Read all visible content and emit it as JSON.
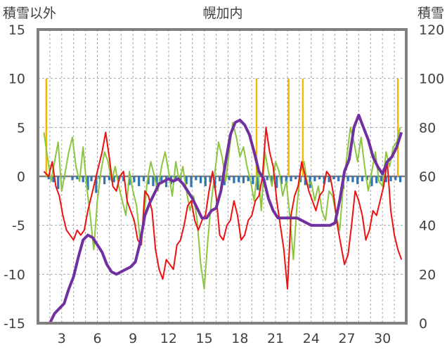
{
  "chart_data": {
    "type": "line",
    "title": "幌加内",
    "left_axis_label": "積雪以外",
    "right_axis_label": "積雪",
    "left_ylim": [
      -15,
      15
    ],
    "left_ticks": [
      15,
      10,
      5,
      0,
      -5,
      -10,
      -15
    ],
    "right_ylim": [
      0,
      120
    ],
    "right_ticks": [
      120,
      100,
      80,
      60,
      40,
      20,
      0
    ],
    "x_range": [
      1,
      32
    ],
    "x_ticks": [
      3,
      6,
      9,
      12,
      15,
      18,
      21,
      24,
      27,
      30
    ],
    "colors": {
      "red": "#ee1111",
      "green": "#8cc63f",
      "purple": "#7030a0",
      "blue": "#2e75b6",
      "orange": "#f5b800",
      "frame": "#808080",
      "grid": "#a6a6a6",
      "zero_line": "#808080"
    },
    "series": [
      {
        "name": "red",
        "axis": "left",
        "style": "line",
        "x": [
          1.5,
          1.9,
          2.2,
          2.5,
          2.8,
          3.1,
          3.4,
          3.7,
          4.0,
          4.3,
          4.6,
          4.9,
          5.2,
          5.5,
          5.8,
          6.1,
          6.4,
          6.7,
          7.0,
          7.3,
          7.6,
          7.9,
          8.2,
          8.5,
          8.8,
          9.1,
          9.4,
          9.7,
          10.0,
          10.3,
          10.6,
          10.9,
          11.2,
          11.5,
          11.8,
          12.1,
          12.4,
          12.7,
          13.0,
          13.3,
          13.6,
          13.9,
          14.2,
          14.5,
          14.8,
          15.1,
          15.4,
          15.7,
          16.0,
          16.3,
          16.6,
          16.9,
          17.2,
          17.5,
          17.8,
          18.1,
          18.4,
          18.7,
          19.0,
          19.3,
          19.6,
          19.9,
          20.2,
          20.5,
          20.8,
          21.1,
          21.4,
          21.7,
          22.0,
          22.3,
          22.6,
          22.9,
          23.2,
          23.5,
          23.8,
          24.1,
          24.4,
          24.7,
          25.0,
          25.3,
          25.6,
          25.9,
          26.2,
          26.5,
          26.8,
          27.1,
          27.4,
          27.7,
          28.0,
          28.3,
          28.6,
          28.9,
          29.2,
          29.5,
          29.8,
          30.1,
          30.4,
          30.7,
          31.0,
          31.3,
          31.6
        ],
        "values": [
          0.5,
          0.0,
          1.5,
          -1.0,
          -2.0,
          -4.0,
          -5.5,
          -6.0,
          -6.5,
          -5.5,
          -6.0,
          -5.5,
          -3.5,
          -2.0,
          -0.5,
          1.0,
          2.5,
          4.5,
          2.0,
          -1.0,
          -1.5,
          0.0,
          0.5,
          -2.5,
          -3.5,
          -4.5,
          -6.5,
          -7.0,
          -1.5,
          -2.0,
          -3.5,
          -7.5,
          -9.5,
          -10.5,
          -8.5,
          -9.0,
          -9.5,
          -7.0,
          -6.5,
          -5.0,
          -3.0,
          -2.5,
          -4.5,
          -5.5,
          -4.5,
          -4.0,
          -1.5,
          0.5,
          -2.0,
          -6.0,
          -6.5,
          -5.0,
          -4.5,
          -2.5,
          -4.0,
          -6.5,
          -6.0,
          -4.5,
          -4.0,
          -2.5,
          -2.0,
          0.0,
          5.0,
          2.5,
          1.0,
          -2.5,
          -5.0,
          -7.5,
          -11.5,
          -4.0,
          -2.0,
          -1.0,
          1.5,
          0.0,
          -1.5,
          -2.5,
          -3.5,
          -2.0,
          -1.5,
          0.5,
          0.0,
          -2.0,
          -5.0,
          -7.0,
          -9.0,
          -8.0,
          -5.0,
          -1.5,
          -2.5,
          -4.0,
          -6.5,
          -5.5,
          -3.5,
          -4.0,
          -2.5,
          -1.0,
          1.5,
          -3.5,
          -6.0,
          -7.5,
          -8.5
        ]
      },
      {
        "name": "green",
        "axis": "left",
        "style": "line",
        "x": [
          1.5,
          1.8,
          2.1,
          2.4,
          2.7,
          3.0,
          3.3,
          3.6,
          3.9,
          4.2,
          4.5,
          4.8,
          5.1,
          5.4,
          5.7,
          6.0,
          6.3,
          6.6,
          6.9,
          7.2,
          7.5,
          7.8,
          8.1,
          8.4,
          8.7,
          9.0,
          9.3,
          9.6,
          9.9,
          10.2,
          10.5,
          10.8,
          11.1,
          11.4,
          11.7,
          12.0,
          12.3,
          12.6,
          12.9,
          13.2,
          13.5,
          13.8,
          14.1,
          14.4,
          14.7,
          15.0,
          15.3,
          15.6,
          15.9,
          16.2,
          16.5,
          16.8,
          17.1,
          17.4,
          17.7,
          18.0,
          18.3,
          18.6,
          18.9,
          19.2,
          19.5,
          19.8,
          20.1,
          20.4,
          20.7,
          21.0,
          21.3,
          21.6,
          21.9,
          22.2,
          22.5,
          22.8,
          23.1,
          23.4,
          23.7,
          24.0,
          24.3,
          24.6,
          24.9,
          25.2,
          25.5,
          25.8,
          26.1,
          26.4,
          26.7,
          27.0,
          27.3,
          27.6,
          27.9,
          28.2,
          28.5,
          28.8,
          29.1,
          29.4,
          29.7,
          30.0,
          30.3,
          30.6,
          30.9,
          31.2,
          31.5
        ],
        "values": [
          4.5,
          2.0,
          -0.5,
          1.5,
          3.5,
          -1.5,
          0.5,
          2.5,
          4.0,
          1.0,
          -0.5,
          3.0,
          -1.0,
          -4.0,
          -7.5,
          -2.5,
          0.5,
          2.5,
          1.5,
          -0.5,
          1.0,
          -1.0,
          -2.5,
          -4.0,
          0.5,
          -1.5,
          -3.0,
          -6.5,
          -4.5,
          -0.5,
          1.5,
          0.0,
          -1.5,
          1.0,
          2.5,
          0.5,
          -2.0,
          1.5,
          -0.5,
          1.0,
          -1.5,
          -3.5,
          -2.0,
          -4.5,
          -9.0,
          -11.5,
          -6.5,
          -2.5,
          0.5,
          3.5,
          2.0,
          -0.5,
          2.5,
          5.5,
          4.0,
          2.0,
          3.0,
          1.0,
          -0.5,
          -2.5,
          1.0,
          -3.5,
          2.5,
          0.5,
          -1.0,
          1.5,
          0.5,
          -2.0,
          -0.5,
          -4.0,
          -8.5,
          -3.0,
          0.5,
          1.5,
          -1.0,
          -0.5,
          -2.5,
          -1.0,
          -3.5,
          -4.5,
          -1.5,
          -2.0,
          -4.0,
          -5.5,
          -1.0,
          2.0,
          5.0,
          3.5,
          1.5,
          4.0,
          1.0,
          -1.5,
          0.5,
          2.5,
          -0.5,
          -1.0,
          2.5,
          1.0,
          3.0,
          3.5,
          5.0
        ]
      },
      {
        "name": "purple",
        "axis": "right",
        "style": "line",
        "x": [
          1.5,
          2.0,
          2.4,
          2.8,
          3.2,
          3.6,
          4.0,
          4.4,
          4.8,
          5.2,
          5.6,
          6.0,
          6.4,
          6.8,
          7.2,
          7.6,
          8.0,
          8.4,
          8.8,
          9.2,
          9.6,
          10.0,
          10.4,
          10.8,
          11.2,
          11.6,
          12.0,
          12.4,
          12.8,
          13.2,
          13.6,
          14.0,
          14.4,
          14.8,
          15.2,
          15.6,
          16.0,
          16.4,
          16.8,
          17.2,
          17.6,
          18.0,
          18.4,
          18.8,
          19.2,
          19.6,
          20.0,
          20.4,
          20.8,
          21.2,
          21.6,
          22.0,
          22.4,
          22.8,
          23.2,
          23.6,
          24.0,
          24.4,
          24.8,
          25.2,
          25.6,
          26.0,
          26.4,
          26.8,
          27.2,
          27.6,
          28.0,
          28.4,
          28.8,
          29.2,
          29.6,
          30.0,
          30.4,
          30.8,
          31.2,
          31.6
        ],
        "values": [
          0,
          0,
          4,
          6,
          8,
          14,
          19,
          27,
          34,
          36,
          35,
          32,
          29,
          24,
          21,
          20,
          21,
          22,
          23,
          25,
          33,
          44,
          49,
          53,
          57,
          58,
          59,
          58,
          59,
          57,
          54,
          51,
          47,
          43,
          43,
          46,
          47,
          54,
          66,
          77,
          82,
          83,
          81,
          77,
          70,
          62,
          59,
          51,
          46,
          43,
          43,
          43,
          43,
          43,
          42,
          41,
          40,
          40,
          40,
          40,
          40,
          41,
          50,
          62,
          67,
          80,
          85,
          80,
          75,
          68,
          64,
          61,
          66,
          68,
          72,
          78
        ]
      },
      {
        "name": "blue",
        "axis": "left",
        "style": "bars",
        "x": [
          1.9,
          2.3,
          2.7,
          3.2,
          3.9,
          4.3,
          4.8,
          5.2,
          5.5,
          5.9,
          6.2,
          6.6,
          7.0,
          7.4,
          7.8,
          8.2,
          8.7,
          9.1,
          9.5,
          9.9,
          10.3,
          10.7,
          11.0,
          11.4,
          11.8,
          12.2,
          12.6,
          13.0,
          13.5,
          13.9,
          14.3,
          14.7,
          15.1,
          15.5,
          15.9,
          16.3,
          16.7,
          17.1,
          17.5,
          17.9,
          18.3,
          18.7,
          19.1,
          19.5,
          19.9,
          20.3,
          20.7,
          21.1,
          21.5,
          21.9,
          22.3,
          22.7,
          23.1,
          23.5,
          23.9,
          24.3,
          24.7,
          25.1,
          25.5,
          25.9,
          26.3,
          26.7,
          27.1,
          27.5,
          27.9,
          28.3,
          28.7,
          29.1,
          29.5,
          29.9,
          30.3,
          30.7,
          31.1,
          31.5
        ],
        "values": [
          -0.3,
          -0.6,
          -1.3,
          -0.3,
          -0.4,
          -0.3,
          -0.6,
          -1.4,
          -0.5,
          -1.7,
          -0.3,
          -0.8,
          -0.4,
          -0.6,
          -0.5,
          -0.5,
          -0.9,
          -0.6,
          -1.0,
          -0.5,
          -0.8,
          -1.0,
          -1.1,
          -0.5,
          -1.1,
          -0.8,
          -0.4,
          -0.6,
          -0.8,
          -1.1,
          -0.4,
          -0.7,
          -1.0,
          -0.6,
          -1.2,
          -0.5,
          -0.9,
          -0.4,
          -0.7,
          -0.6,
          -0.7,
          -0.5,
          -0.8,
          -1.4,
          -0.5,
          -0.4,
          -0.6,
          -1.2,
          -0.8,
          -0.6,
          -0.5,
          -0.3,
          -0.6,
          -0.9,
          -1.2,
          -0.5,
          -0.3,
          -0.8,
          -0.6,
          -0.3,
          -0.5,
          -1.3,
          -0.5,
          -0.6,
          -0.8,
          -0.5,
          -0.4,
          -1.0,
          -0.7,
          -0.5,
          -0.6,
          -0.5,
          -0.4,
          -0.6
        ]
      },
      {
        "name": "orange",
        "axis": "left",
        "style": "bars",
        "x": [
          1.7,
          19.4,
          22.1,
          23.3,
          31.3
        ],
        "values": [
          10.0,
          10.0,
          10.0,
          10.0,
          10.0
        ]
      }
    ]
  }
}
